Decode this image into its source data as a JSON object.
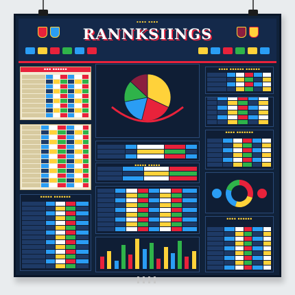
{
  "poster": {
    "kicker": "▪▪▪▪ ▪▪▪▪",
    "title": "RANNKSIINGS",
    "colors": {
      "navy": "#10223a",
      "red": "#e8223b",
      "yellow": "#ffd23a",
      "blue": "#2a9df4",
      "green": "#2fb34a",
      "cream": "#f3ecd3"
    }
  },
  "panels": {
    "top_left": {
      "title": "▪▪▪ ▪▪▪▪▪▪"
    },
    "pie": {
      "title": "",
      "segments": [
        32,
        22,
        18,
        15,
        13
      ]
    },
    "top_right": {
      "title": "▪▪▪▪ ▪▪▪▪▪▪ ▪▪▪▪▪▪"
    },
    "mid_left": {
      "title": ""
    },
    "mid_center": {
      "title": "▪▪▪▪▪ ▪▪▪▪▪"
    },
    "mid_right": {
      "title": "▪▪▪▪ ▪▪▪▪▪▪▪"
    },
    "bottom_left": {
      "title": "▪▪▪▪▪ ▪▪▪▪▪▪▪"
    },
    "bottom_center": {
      "title": ""
    },
    "bottom_right": {
      "title": "▪▪▪▪ ▪▪▪▪▪▪"
    },
    "columns": {
      "values": [
        6,
        9,
        4,
        12,
        7,
        15,
        10,
        13,
        5,
        11,
        8,
        14,
        6,
        9
      ]
    }
  }
}
